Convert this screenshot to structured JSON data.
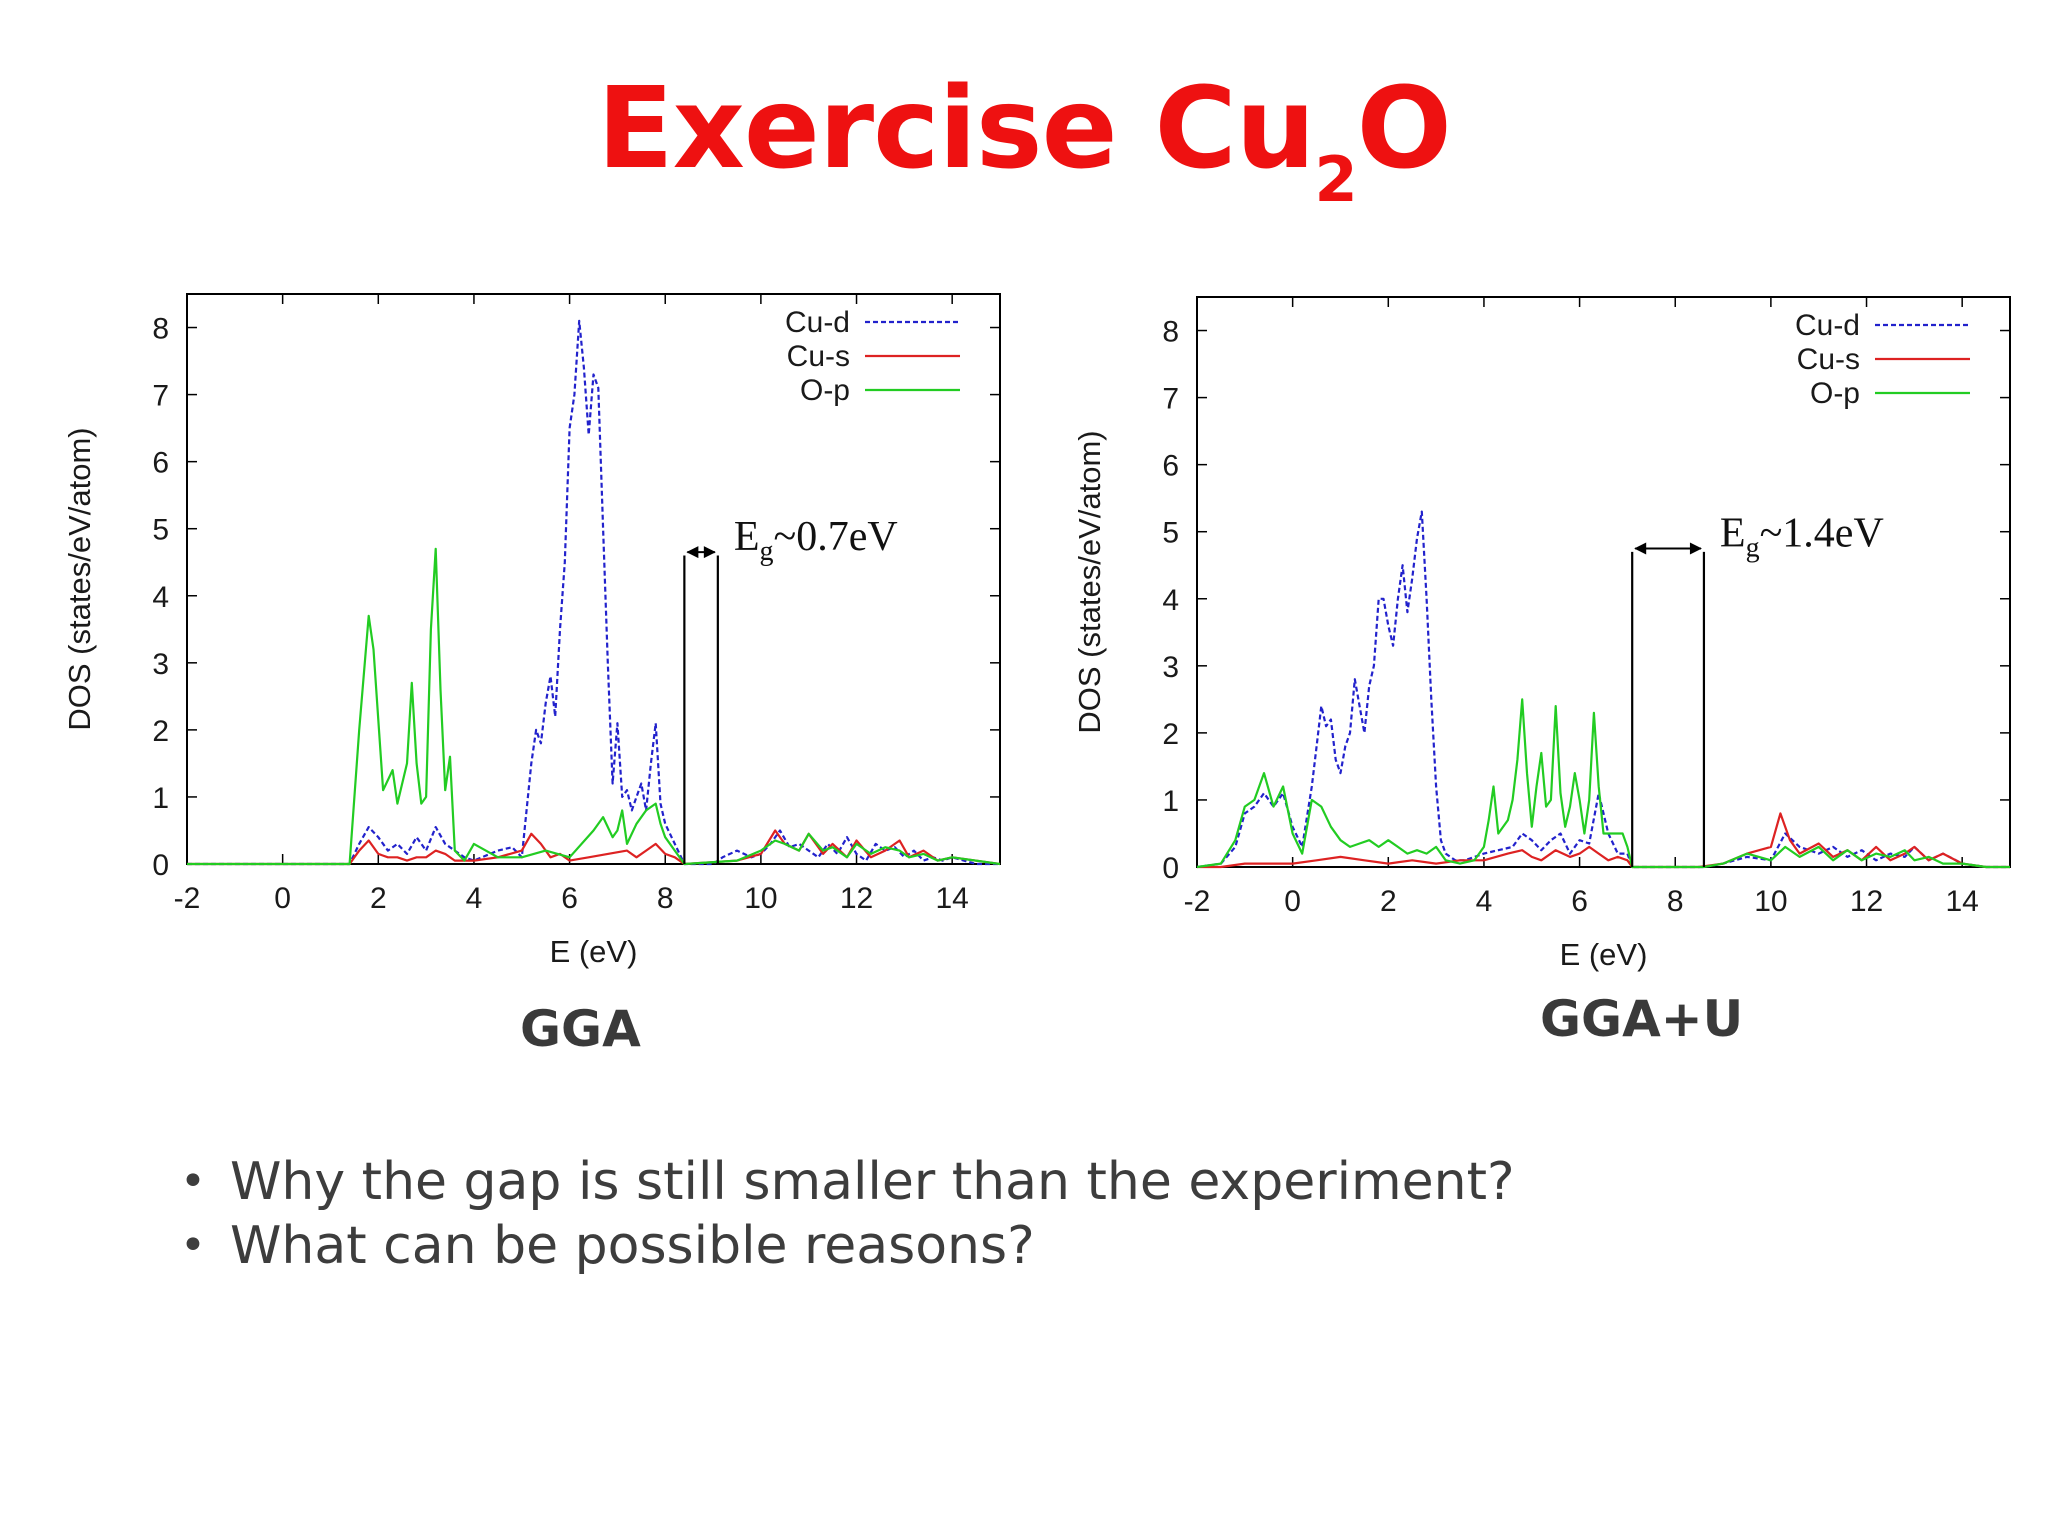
{
  "title": {
    "main": "Exercise Cu",
    "sub": "2",
    "tail": "O"
  },
  "captions": [
    "GGA",
    "GGA+U"
  ],
  "bullets": [
    "Why the gap is still smaller than the experiment?",
    "What can be possible reasons?"
  ],
  "chart_data": [
    {
      "type": "line",
      "caption": "GGA",
      "xlabel": "E (eV)",
      "ylabel": "DOS (states/eV/atom)",
      "xlim": [
        -2,
        15
      ],
      "ylim": [
        0,
        8.5
      ],
      "xticks": [
        -2,
        0,
        2,
        4,
        6,
        8,
        10,
        12,
        14
      ],
      "yticks": [
        0,
        1,
        2,
        3,
        4,
        5,
        6,
        7,
        8
      ],
      "gap": {
        "label_main": "E",
        "label_sub": "g",
        "label_tail": "~0.7eV",
        "from": 8.4,
        "to": 9.1,
        "height": 4.6
      },
      "legend_position": "top-right",
      "series": [
        {
          "name": "Cu-d",
          "color": "#2222cc",
          "dash": "5,3",
          "x": [
            -2,
            1.4,
            1.6,
            1.8,
            2.0,
            2.2,
            2.4,
            2.6,
            2.8,
            3.0,
            3.2,
            3.4,
            3.6,
            3.8,
            4.0,
            4.5,
            4.8,
            5.0,
            5.2,
            5.3,
            5.4,
            5.5,
            5.6,
            5.7,
            5.8,
            5.9,
            6.0,
            6.1,
            6.2,
            6.3,
            6.4,
            6.5,
            6.6,
            6.7,
            6.8,
            6.9,
            7.0,
            7.1,
            7.2,
            7.3,
            7.4,
            7.5,
            7.6,
            7.7,
            7.8,
            7.9,
            8.0,
            8.2,
            8.4,
            8.7,
            9.0,
            9.2,
            9.5,
            9.8,
            10.0,
            10.2,
            10.4,
            10.6,
            10.8,
            11.0,
            11.2,
            11.4,
            11.6,
            11.8,
            12.0,
            12.2,
            12.4,
            12.6,
            12.8,
            13.0,
            13.2,
            13.4,
            13.6,
            13.8,
            14.0,
            14.5,
            15
          ],
          "y": [
            0,
            0,
            0.3,
            0.55,
            0.4,
            0.2,
            0.3,
            0.15,
            0.4,
            0.2,
            0.55,
            0.3,
            0.2,
            0.1,
            0.05,
            0.2,
            0.25,
            0.1,
            1.5,
            2.0,
            1.8,
            2.4,
            2.8,
            2.2,
            3.5,
            4.5,
            6.5,
            7.0,
            8.1,
            7.4,
            6.4,
            7.3,
            7.1,
            5.0,
            3.0,
            1.2,
            2.1,
            1.0,
            1.1,
            0.8,
            1.0,
            1.2,
            0.8,
            1.5,
            2.1,
            0.9,
            0.6,
            0.3,
            0,
            0,
            0,
            0.1,
            0.2,
            0.1,
            0.15,
            0.3,
            0.5,
            0.25,
            0.3,
            0.2,
            0.1,
            0.3,
            0.15,
            0.4,
            0.15,
            0.05,
            0.3,
            0.2,
            0.25,
            0.1,
            0.2,
            0.05,
            0.1,
            0.05,
            0.1,
            0,
            0
          ]
        },
        {
          "name": "Cu-s",
          "color": "#dd2222",
          "dash": "",
          "x": [
            -2,
            1.4,
            1.6,
            1.8,
            2.0,
            2.2,
            2.4,
            2.6,
            2.8,
            3.0,
            3.2,
            3.4,
            3.6,
            4.0,
            4.5,
            5.0,
            5.2,
            5.4,
            5.6,
            5.8,
            6.0,
            6.4,
            6.8,
            7.2,
            7.4,
            7.6,
            7.8,
            8.0,
            8.2,
            8.4,
            9.5,
            10.0,
            10.3,
            10.5,
            10.8,
            11.0,
            11.3,
            11.5,
            11.8,
            12.0,
            12.3,
            12.6,
            12.9,
            13.1,
            13.4,
            13.7,
            14.0,
            15
          ],
          "y": [
            0,
            0,
            0.2,
            0.35,
            0.15,
            0.1,
            0.1,
            0.05,
            0.1,
            0.1,
            0.2,
            0.15,
            0.05,
            0.05,
            0.1,
            0.2,
            0.45,
            0.3,
            0.1,
            0.15,
            0.05,
            0.1,
            0.15,
            0.2,
            0.1,
            0.2,
            0.3,
            0.15,
            0.1,
            0,
            0.05,
            0.15,
            0.5,
            0.3,
            0.2,
            0.45,
            0.15,
            0.3,
            0.1,
            0.35,
            0.1,
            0.2,
            0.35,
            0.1,
            0.2,
            0.05,
            0.1,
            0
          ]
        },
        {
          "name": "O-p",
          "color": "#22cc22",
          "dash": "",
          "x": [
            -2,
            1.4,
            1.6,
            1.8,
            1.9,
            2.1,
            2.3,
            2.4,
            2.6,
            2.7,
            2.8,
            2.9,
            3.0,
            3.1,
            3.2,
            3.3,
            3.4,
            3.5,
            3.6,
            3.8,
            4.0,
            4.5,
            5.0,
            5.5,
            6.0,
            6.5,
            6.7,
            6.9,
            7.0,
            7.1,
            7.2,
            7.4,
            7.6,
            7.8,
            7.9,
            8.0,
            8.2,
            8.4,
            9.5,
            10.0,
            10.3,
            10.5,
            10.8,
            11.0,
            11.3,
            11.5,
            11.8,
            12.0,
            12.3,
            12.6,
            12.9,
            13.1,
            13.4,
            13.7,
            14.0,
            15
          ],
          "y": [
            0,
            0,
            2.0,
            3.7,
            3.2,
            1.1,
            1.4,
            0.9,
            1.5,
            2.7,
            1.5,
            0.9,
            1.0,
            3.5,
            4.7,
            2.6,
            1.1,
            1.6,
            0.2,
            0.05,
            0.3,
            0.1,
            0.1,
            0.2,
            0.1,
            0.5,
            0.7,
            0.4,
            0.5,
            0.8,
            0.3,
            0.6,
            0.8,
            0.9,
            0.6,
            0.4,
            0.2,
            0,
            0.05,
            0.2,
            0.35,
            0.3,
            0.2,
            0.45,
            0.2,
            0.25,
            0.1,
            0.3,
            0.15,
            0.25,
            0.2,
            0.1,
            0.15,
            0.05,
            0.1,
            0
          ]
        }
      ]
    },
    {
      "type": "line",
      "caption": "GGA+U",
      "xlabel": "E (eV)",
      "ylabel": "DOS (states/eV/atom)",
      "xlim": [
        -2,
        15
      ],
      "ylim": [
        0,
        8.5
      ],
      "xticks": [
        -2,
        0,
        2,
        4,
        6,
        8,
        10,
        12,
        14
      ],
      "yticks": [
        0,
        1,
        2,
        3,
        4,
        5,
        6,
        7,
        8
      ],
      "gap": {
        "label_main": "E",
        "label_sub": "g",
        "label_tail": "~1.4eV",
        "from": 7.1,
        "to": 8.6,
        "height": 4.7
      },
      "legend_position": "top-right",
      "series": [
        {
          "name": "Cu-d",
          "color": "#2222cc",
          "dash": "5,3",
          "x": [
            -2,
            -1.5,
            -1.2,
            -1.0,
            -0.8,
            -0.6,
            -0.4,
            -0.2,
            0.0,
            0.2,
            0.4,
            0.5,
            0.6,
            0.7,
            0.8,
            0.9,
            1.0,
            1.1,
            1.2,
            1.3,
            1.4,
            1.5,
            1.6,
            1.7,
            1.8,
            1.9,
            2.0,
            2.1,
            2.2,
            2.3,
            2.4,
            2.5,
            2.6,
            2.7,
            2.8,
            2.9,
            3.0,
            3.1,
            3.2,
            3.4,
            3.6,
            4.0,
            4.3,
            4.6,
            4.8,
            5.0,
            5.2,
            5.4,
            5.6,
            5.8,
            6.0,
            6.2,
            6.4,
            6.6,
            6.8,
            7.0,
            7.1,
            8.0,
            8.6,
            9.0,
            9.5,
            10.0,
            10.3,
            10.6,
            11.0,
            11.3,
            11.6,
            11.9,
            12.2,
            12.5,
            12.8,
            13.0,
            13.3,
            13.6,
            14.0,
            14.5,
            15
          ],
          "y": [
            0,
            0.05,
            0.3,
            0.8,
            0.9,
            1.1,
            0.9,
            1.1,
            0.6,
            0.3,
            1.2,
            1.8,
            2.4,
            2.1,
            2.2,
            1.6,
            1.4,
            1.8,
            2.0,
            2.8,
            2.4,
            2.0,
            2.7,
            3.0,
            4.0,
            4.0,
            3.6,
            3.3,
            4.0,
            4.5,
            3.8,
            4.3,
            4.9,
            5.3,
            4.0,
            2.5,
            1.2,
            0.4,
            0.2,
            0.1,
            0.1,
            0.2,
            0.25,
            0.3,
            0.5,
            0.4,
            0.25,
            0.4,
            0.5,
            0.2,
            0.4,
            0.35,
            1.1,
            0.5,
            0.2,
            0.2,
            0,
            0,
            0,
            0.05,
            0.15,
            0.1,
            0.5,
            0.3,
            0.2,
            0.3,
            0.15,
            0.25,
            0.1,
            0.2,
            0.15,
            0.3,
            0.1,
            0.2,
            0.05,
            0,
            0
          ]
        },
        {
          "name": "Cu-s",
          "color": "#dd2222",
          "dash": "",
          "x": [
            -2,
            -1.5,
            -1.0,
            -0.5,
            0.0,
            0.5,
            1.0,
            1.5,
            2.0,
            2.5,
            3.0,
            3.5,
            4.0,
            4.5,
            4.8,
            5.0,
            5.2,
            5.5,
            5.8,
            6.0,
            6.2,
            6.4,
            6.6,
            6.8,
            7.0,
            7.1,
            8.5,
            9.0,
            9.5,
            10.0,
            10.2,
            10.4,
            10.6,
            11.0,
            11.3,
            11.6,
            11.9,
            12.2,
            12.5,
            12.8,
            13.0,
            13.3,
            13.6,
            14.0,
            14.5,
            15
          ],
          "y": [
            0,
            0,
            0.05,
            0.05,
            0.05,
            0.1,
            0.15,
            0.1,
            0.05,
            0.1,
            0.05,
            0.1,
            0.1,
            0.2,
            0.25,
            0.15,
            0.1,
            0.25,
            0.15,
            0.2,
            0.3,
            0.2,
            0.1,
            0.15,
            0.1,
            0,
            0,
            0.05,
            0.2,
            0.3,
            0.8,
            0.4,
            0.2,
            0.35,
            0.15,
            0.25,
            0.1,
            0.3,
            0.1,
            0.2,
            0.3,
            0.1,
            0.2,
            0.05,
            0,
            0
          ]
        },
        {
          "name": "O-p",
          "color": "#22cc22",
          "dash": "",
          "x": [
            -2,
            -1.5,
            -1.2,
            -1.0,
            -0.8,
            -0.6,
            -0.4,
            -0.2,
            0.0,
            0.2,
            0.4,
            0.6,
            0.8,
            1.0,
            1.2,
            1.4,
            1.6,
            1.8,
            2.0,
            2.2,
            2.4,
            2.6,
            2.8,
            3.0,
            3.2,
            3.5,
            3.8,
            4.0,
            4.1,
            4.2,
            4.3,
            4.5,
            4.6,
            4.7,
            4.8,
            4.9,
            5.0,
            5.1,
            5.2,
            5.3,
            5.4,
            5.5,
            5.6,
            5.7,
            5.8,
            5.9,
            6.0,
            6.1,
            6.2,
            6.3,
            6.4,
            6.5,
            6.7,
            6.9,
            7.0,
            7.1,
            8.0,
            8.6,
            9.0,
            9.5,
            10.0,
            10.3,
            10.6,
            11.0,
            11.3,
            11.6,
            11.9,
            12.2,
            12.5,
            12.8,
            13.0,
            13.3,
            13.6,
            14.0,
            14.5,
            15
          ],
          "y": [
            0,
            0.05,
            0.4,
            0.9,
            1.0,
            1.4,
            0.9,
            1.2,
            0.5,
            0.2,
            1.0,
            0.9,
            0.6,
            0.4,
            0.3,
            0.35,
            0.4,
            0.3,
            0.4,
            0.3,
            0.2,
            0.25,
            0.2,
            0.3,
            0.1,
            0.05,
            0.1,
            0.3,
            0.7,
            1.2,
            0.5,
            0.7,
            1.0,
            1.6,
            2.5,
            1.4,
            0.6,
            1.2,
            1.7,
            0.9,
            1.0,
            2.4,
            1.1,
            0.6,
            0.9,
            1.4,
            1.0,
            0.5,
            1.0,
            2.3,
            1.2,
            0.5,
            0.5,
            0.5,
            0.3,
            0,
            0,
            0,
            0.05,
            0.2,
            0.1,
            0.3,
            0.15,
            0.3,
            0.1,
            0.25,
            0.1,
            0.2,
            0.15,
            0.25,
            0.1,
            0.15,
            0.05,
            0.05,
            0,
            0
          ]
        }
      ]
    }
  ]
}
